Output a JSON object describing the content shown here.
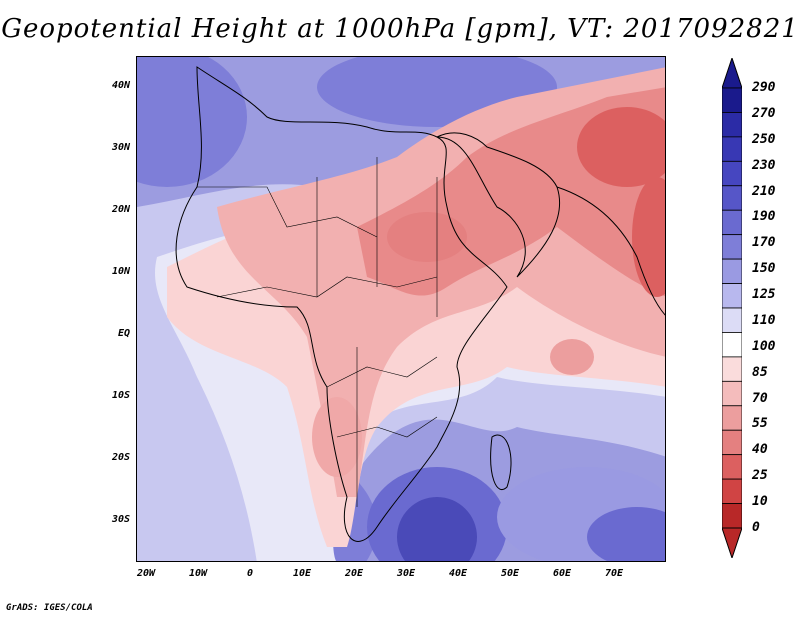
{
  "title": "Geopotential Height at 1000hPa [gpm], VT: 2017092821",
  "credit": "GrADS: IGES/COLA",
  "map": {
    "lat_labels": [
      "40N",
      "30N",
      "20N",
      "10N",
      "EQ",
      "10S",
      "20S",
      "30S"
    ],
    "lon_labels": [
      "20W",
      "10W",
      "0",
      "10E",
      "20E",
      "30E",
      "40E",
      "50E",
      "60E",
      "70E"
    ]
  },
  "colorbar": {
    "levels": [
      "290",
      "270",
      "250",
      "230",
      "210",
      "190",
      "170",
      "150",
      "125",
      "110",
      "100",
      "85",
      "70",
      "55",
      "40",
      "25",
      "10",
      "0"
    ],
    "colors": [
      "#1a1a8c",
      "#2b2ba6",
      "#3838b4",
      "#4646c0",
      "#5656c8",
      "#6a6ad0",
      "#7e7ed8",
      "#9a9ae2",
      "#b8b8ee",
      "#dcdcf6",
      "#ffffff",
      "#fadcdc",
      "#f4bcbc",
      "#ec9e9e",
      "#e48080",
      "#dc6060",
      "#d04444",
      "#b82828"
    ]
  }
}
